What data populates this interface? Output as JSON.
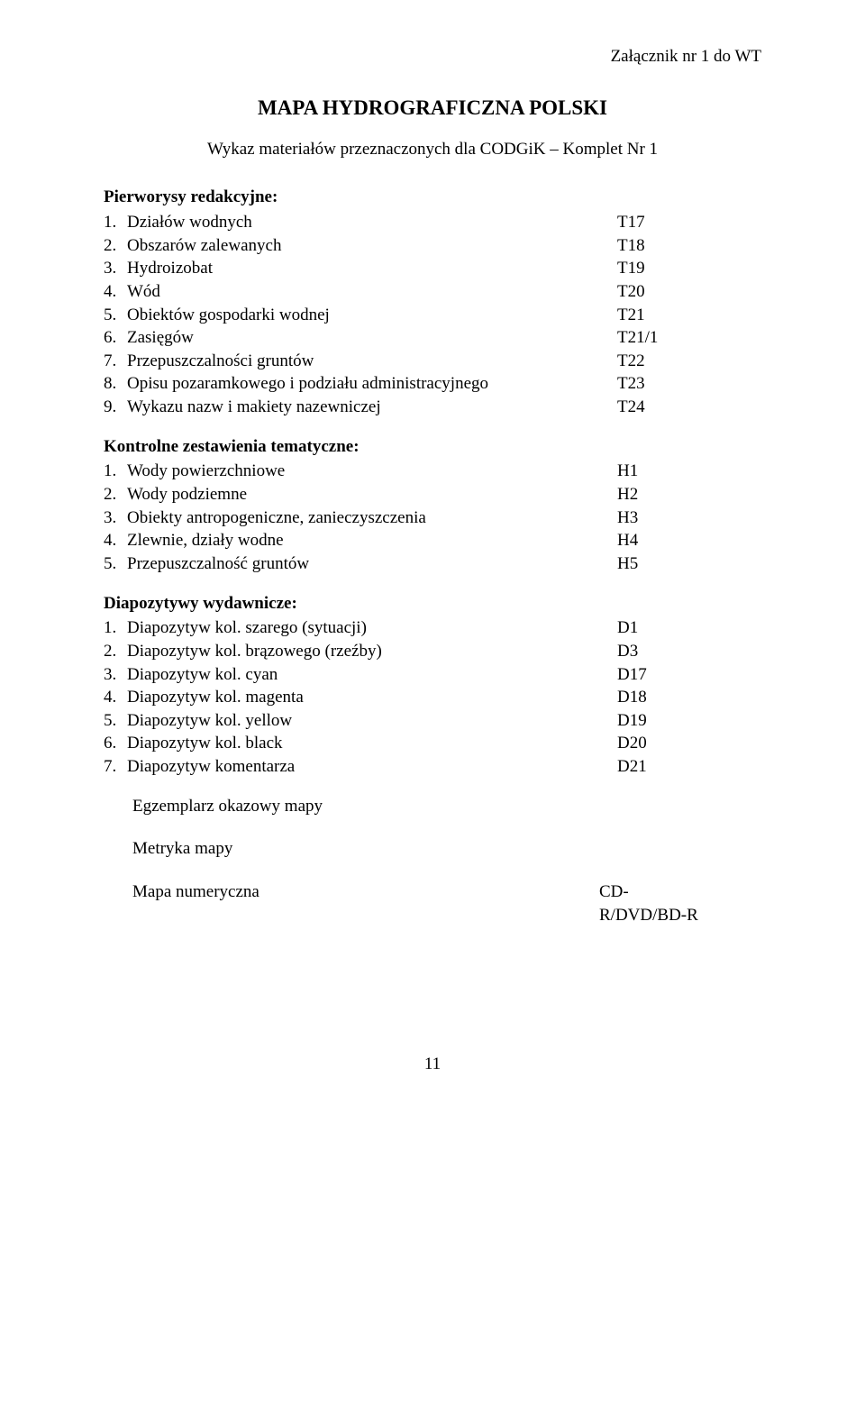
{
  "header_right": "Załącznik nr 1 do WT",
  "title": "MAPA HYDROGRAFICZNA POLSKI",
  "subtitle": "Wykaz materiałów przeznaczonych dla CODGiK – Komplet Nr 1",
  "section_pierworysy": "Pierworysy redakcyjne:",
  "pierworysy": [
    {
      "n": "1.",
      "label": "Działów wodnych",
      "code": "T17"
    },
    {
      "n": "2.",
      "label": "Obszarów zalewanych",
      "code": "T18"
    },
    {
      "n": "3.",
      "label": "Hydroizobat",
      "code": "T19"
    },
    {
      "n": "4.",
      "label": "Wód",
      "code": "T20"
    },
    {
      "n": "5.",
      "label": "Obiektów gospodarki wodnej",
      "code": "T21"
    },
    {
      "n": "6.",
      "label": "Zasięgów",
      "code": "T21/1"
    },
    {
      "n": "7.",
      "label": "Przepuszczalności gruntów",
      "code": "T22"
    },
    {
      "n": "8.",
      "label": "Opisu pozaramkowego i podziału administracyjnego",
      "code": "T23"
    },
    {
      "n": "9.",
      "label": "Wykazu nazw i makiety nazewniczej",
      "code": "T24"
    }
  ],
  "section_kontrolne": "Kontrolne zestawienia tematyczne:",
  "kontrolne": [
    {
      "n": "1.",
      "label": "Wody powierzchniowe",
      "code": "H1"
    },
    {
      "n": "2.",
      "label": "Wody podziemne",
      "code": "H2"
    },
    {
      "n": "3.",
      "label": "Obiekty antropogeniczne, zanieczyszczenia",
      "code": "H3"
    },
    {
      "n": "4.",
      "label": "Zlewnie, działy wodne",
      "code": "H4"
    },
    {
      "n": "5.",
      "label": "Przepuszczalność gruntów",
      "code": "H5"
    }
  ],
  "section_diapozytywy": "Diapozytywy wydawnicze:",
  "diapozytywy": [
    {
      "n": "1.",
      "label": "Diapozytyw kol. szarego (sytuacji)",
      "code": "D1"
    },
    {
      "n": "2.",
      "label": "Diapozytyw kol. brązowego (rzeźby)",
      "code": "D3"
    },
    {
      "n": "3.",
      "label": "Diapozytyw kol. cyan",
      "code": "D17"
    },
    {
      "n": "4.",
      "label": "Diapozytyw kol. magenta",
      "code": "D18"
    },
    {
      "n": "5.",
      "label": "Diapozytyw kol. yellow",
      "code": "D19"
    },
    {
      "n": "6.",
      "label": "Diapozytyw kol. black",
      "code": "D20"
    },
    {
      "n": "7.",
      "label": "Diapozytyw komentarza",
      "code": "D21"
    }
  ],
  "egzemplarz": "Egzemplarz okazowy mapy",
  "metryka": "Metryka mapy",
  "mapa_label": "Mapa numeryczna",
  "mapa_code_line1": "CD-",
  "mapa_code_line2": "R/DVD/BD-R",
  "page_number": "11"
}
